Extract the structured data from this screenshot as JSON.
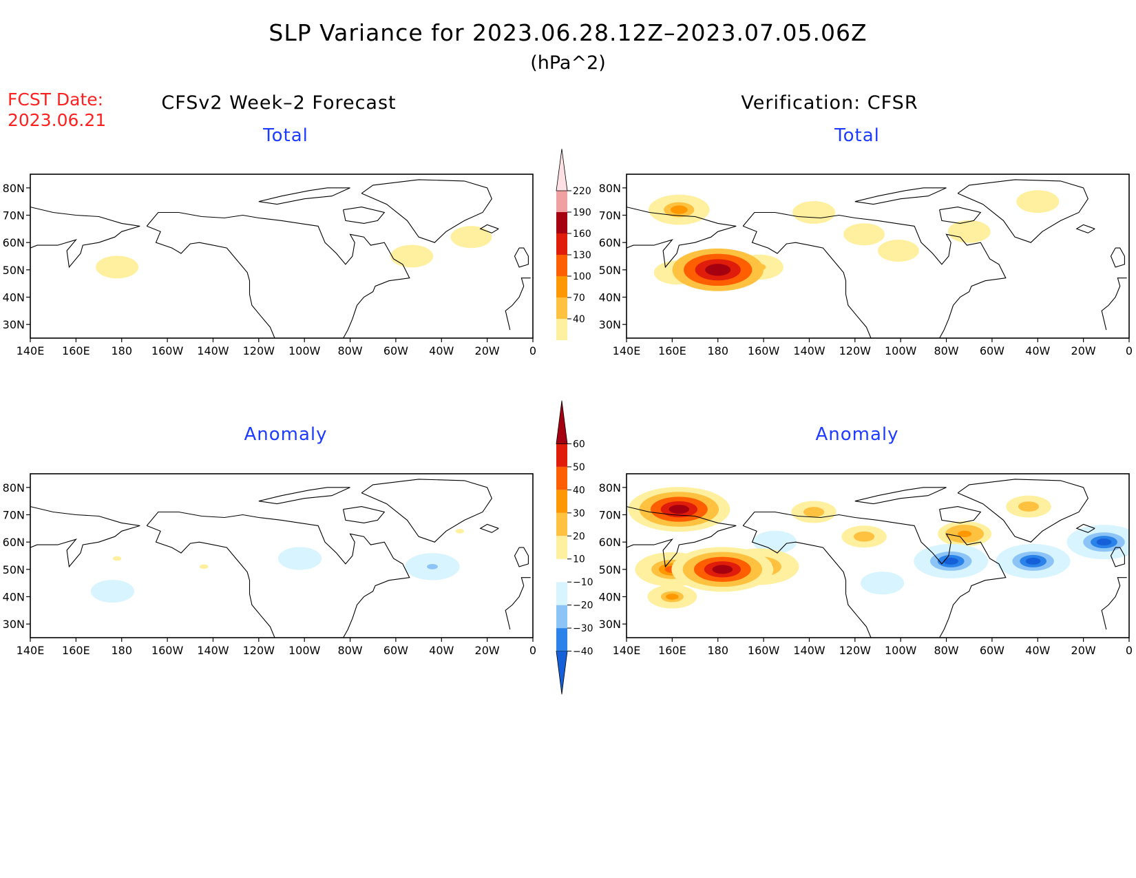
{
  "title": "SLP Variance for 2023.06.28.12Z–2023.07.05.06Z",
  "units": "(hPa^2)",
  "fcst_date": {
    "label": "FCST Date:",
    "value": "2023.06.21"
  },
  "columns": {
    "left": "CFSv2 Week–2 Forecast",
    "right": "Verification: CFSR"
  },
  "panels": {
    "fc_total": {
      "title": "Total"
    },
    "ver_total": {
      "title": "Total"
    },
    "fc_anom": {
      "title": "Anomaly"
    },
    "ver_anom": {
      "title": "Anomaly"
    }
  },
  "axes": {
    "lat_ticks": [
      "80N",
      "70N",
      "60N",
      "50N",
      "40N",
      "30N"
    ],
    "lat_values": [
      80,
      70,
      60,
      50,
      40,
      30
    ],
    "lon_ticks": [
      "140E",
      "160E",
      "180",
      "160W",
      "140W",
      "120W",
      "100W",
      "80W",
      "60W",
      "40W",
      "20W",
      "0"
    ],
    "lon_values": [
      140,
      160,
      180,
      200,
      220,
      240,
      260,
      280,
      300,
      320,
      340,
      360
    ],
    "lon_range_deg_east": [
      140,
      360
    ],
    "lat_range": [
      25,
      85
    ]
  },
  "colorbars": {
    "total": {
      "labels": [
        "40",
        "70",
        "100",
        "130",
        "160",
        "190",
        "220"
      ],
      "colors": [
        "#fff0a0",
        "#ffc140",
        "#ff9800",
        "#ff5f00",
        "#e01d0a",
        "#a50010",
        "#f0a0a0",
        "#ffe0e4"
      ]
    },
    "anomaly": {
      "labels": [
        "−40",
        "−30",
        "−20",
        "−10",
        "10",
        "20",
        "30",
        "40",
        "50",
        "60"
      ],
      "colors": [
        "#1560d8",
        "#2b82e8",
        "#8cc4f8",
        "#d8f4ff",
        "#ffffff",
        "#fff0a0",
        "#ffc140",
        "#ff9800",
        "#ff5f00",
        "#e01d0a",
        "#a50010"
      ]
    }
  },
  "chart_data": [
    {
      "type": "heatmap",
      "panel": "CFSv2 Week–2 Forecast – Total",
      "units": "hPa^2",
      "features": [
        {
          "lon": 178,
          "lat": 51,
          "value": 50
        },
        {
          "lon": 307,
          "lat": 55,
          "value": 50
        },
        {
          "lon": 333,
          "lat": 62,
          "value": 45
        }
      ]
    },
    {
      "type": "heatmap",
      "panel": "Verification: CFSR – Total",
      "units": "hPa^2",
      "features": [
        {
          "lon": 163,
          "lat": 72,
          "value": 110
        },
        {
          "lon": 180,
          "lat": 50,
          "value": 210
        },
        {
          "lon": 162,
          "lat": 49,
          "value": 60
        },
        {
          "lon": 198,
          "lat": 51,
          "value": 70
        },
        {
          "lon": 222,
          "lat": 71,
          "value": 50
        },
        {
          "lon": 259,
          "lat": 57,
          "value": 45
        },
        {
          "lon": 244,
          "lat": 63,
          "value": 45
        },
        {
          "lon": 290,
          "lat": 64,
          "value": 50
        },
        {
          "lon": 320,
          "lat": 75,
          "value": 50
        }
      ]
    },
    {
      "type": "heatmap",
      "panel": "CFSv2 Week–2 Forecast – Anomaly",
      "units": "hPa^2",
      "features": [
        {
          "lon": 178,
          "lat": 54,
          "value": 12
        },
        {
          "lon": 216,
          "lat": 51,
          "value": 12
        },
        {
          "lon": 328,
          "lat": 64,
          "value": 12
        },
        {
          "lon": 258,
          "lat": 54,
          "value": -12
        },
        {
          "lon": 316,
          "lat": 51,
          "value": -22
        },
        {
          "lon": 176,
          "lat": 42,
          "value": -12
        }
      ]
    },
    {
      "type": "heatmap",
      "panel": "Verification: CFSR – Anomaly",
      "units": "hPa^2",
      "features": [
        {
          "lon": 163,
          "lat": 72,
          "value": 65
        },
        {
          "lon": 182,
          "lat": 50,
          "value": 65
        },
        {
          "lon": 160,
          "lat": 50,
          "value": 40
        },
        {
          "lon": 198,
          "lat": 51,
          "value": 45
        },
        {
          "lon": 222,
          "lat": 71,
          "value": 25
        },
        {
          "lon": 244,
          "lat": 62,
          "value": 25
        },
        {
          "lon": 288,
          "lat": 63,
          "value": 35
        },
        {
          "lon": 316,
          "lat": 73,
          "value": 25
        },
        {
          "lon": 160,
          "lat": 40,
          "value": 30
        },
        {
          "lon": 282,
          "lat": 53,
          "value": -40
        },
        {
          "lon": 318,
          "lat": 53,
          "value": -40
        },
        {
          "lon": 349,
          "lat": 60,
          "value": -40
        },
        {
          "lon": 252,
          "lat": 45,
          "value": -12
        },
        {
          "lon": 205,
          "lat": 60,
          "value": -12
        }
      ]
    }
  ]
}
